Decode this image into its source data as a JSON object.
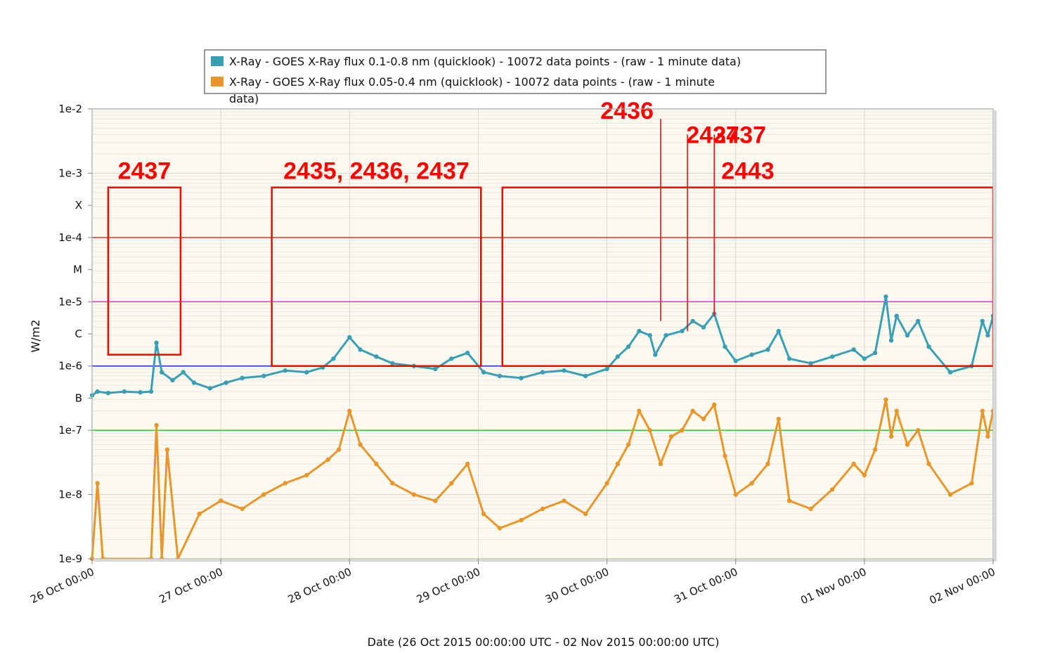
{
  "chart_data": {
    "type": "line",
    "xlabel": "Date (26 Oct 2015 00:00:00 UTC - 02 Nov 2015 00:00:00 UTC)",
    "ylabel": "W/m2",
    "y_scale": "log",
    "ylim": [
      1e-09,
      0.01
    ],
    "xlim": [
      "2015-10-26 00:00",
      "2015-11-02 00:00"
    ],
    "x_tick_labels": [
      "26 Oct 00:00",
      "27 Oct 00:00",
      "28 Oct 00:00",
      "29 Oct 00:00",
      "30 Oct 00:00",
      "31 Oct 00:00",
      "01 Nov 00:00",
      "02 Nov 00:00"
    ],
    "y_tick_labels": [
      {
        "label": "1e-2",
        "value": 0.01
      },
      {
        "label": "1e-3",
        "value": 0.001
      },
      {
        "label": "X",
        "value": 0.000316
      },
      {
        "label": "1e-4",
        "value": 0.0001
      },
      {
        "label": "M",
        "value": 3.16e-05
      },
      {
        "label": "1e-5",
        "value": 1e-05
      },
      {
        "label": "C",
        "value": 3.16e-06
      },
      {
        "label": "1e-6",
        "value": 1e-06
      },
      {
        "label": "B",
        "value": 3.16e-07
      },
      {
        "label": "1e-7",
        "value": 1e-07
      },
      {
        "label": "1e-8",
        "value": 1e-08
      },
      {
        "label": "1e-9",
        "value": 1e-09
      }
    ],
    "grid": true,
    "legend_position": "top-center",
    "threshold_lines": [
      {
        "value": 0.0001,
        "color": "#ff0000"
      },
      {
        "value": 1e-05,
        "color": "#ff00ff"
      },
      {
        "value": 1e-06,
        "color": "#0000ff"
      },
      {
        "value": 1e-07,
        "color": "#00cc00"
      }
    ],
    "series": [
      {
        "name": "X-Ray - GOES X-Ray flux 0.1-0.8 nm (quicklook) - 10072 data points -  (raw - 1 minute data)",
        "color": "#3a9fb5",
        "points": [
          [
            "2015-10-26 00:00",
            3.5e-07
          ],
          [
            "2015-10-26 01:00",
            4e-07
          ],
          [
            "2015-10-26 03:00",
            3.8e-07
          ],
          [
            "2015-10-26 06:00",
            4e-07
          ],
          [
            "2015-10-26 09:00",
            3.9e-07
          ],
          [
            "2015-10-26 11:00",
            4e-07
          ],
          [
            "2015-10-26 12:00",
            2.3e-06
          ],
          [
            "2015-10-26 13:00",
            8e-07
          ],
          [
            "2015-10-26 15:00",
            6e-07
          ],
          [
            "2015-10-26 17:00",
            8e-07
          ],
          [
            "2015-10-26 19:00",
            5.5e-07
          ],
          [
            "2015-10-26 22:00",
            4.5e-07
          ],
          [
            "2015-10-27 01:00",
            5.5e-07
          ],
          [
            "2015-10-27 04:00",
            6.5e-07
          ],
          [
            "2015-10-27 08:00",
            7e-07
          ],
          [
            "2015-10-27 12:00",
            8.5e-07
          ],
          [
            "2015-10-27 16:00",
            8e-07
          ],
          [
            "2015-10-27 19:00",
            9.5e-07
          ],
          [
            "2015-10-27 21:00",
            1.3e-06
          ],
          [
            "2015-10-28 00:00",
            2.8e-06
          ],
          [
            "2015-10-28 02:00",
            1.8e-06
          ],
          [
            "2015-10-28 05:00",
            1.4e-06
          ],
          [
            "2015-10-28 08:00",
            1.1e-06
          ],
          [
            "2015-10-28 12:00",
            1e-06
          ],
          [
            "2015-10-28 16:00",
            9e-07
          ],
          [
            "2015-10-28 19:00",
            1.3e-06
          ],
          [
            "2015-10-28 22:00",
            1.6e-06
          ],
          [
            "2015-10-29 01:00",
            8e-07
          ],
          [
            "2015-10-29 04:00",
            7e-07
          ],
          [
            "2015-10-29 08:00",
            6.5e-07
          ],
          [
            "2015-10-29 12:00",
            8e-07
          ],
          [
            "2015-10-29 16:00",
            8.5e-07
          ],
          [
            "2015-10-29 20:00",
            7e-07
          ],
          [
            "2015-10-30 00:00",
            9e-07
          ],
          [
            "2015-10-30 02:00",
            1.4e-06
          ],
          [
            "2015-10-30 04:00",
            2e-06
          ],
          [
            "2015-10-30 06:00",
            3.5e-06
          ],
          [
            "2015-10-30 08:00",
            3e-06
          ],
          [
            "2015-10-30 09:00",
            1.5e-06
          ],
          [
            "2015-10-30 11:00",
            3e-06
          ],
          [
            "2015-10-30 14:00",
            3.5e-06
          ],
          [
            "2015-10-30 16:00",
            5e-06
          ],
          [
            "2015-10-30 18:00",
            4e-06
          ],
          [
            "2015-10-30 20:00",
            6.5e-06
          ],
          [
            "2015-10-30 22:00",
            2e-06
          ],
          [
            "2015-10-31 00:00",
            1.2e-06
          ],
          [
            "2015-10-31 03:00",
            1.5e-06
          ],
          [
            "2015-10-31 06:00",
            1.8e-06
          ],
          [
            "2015-10-31 08:00",
            3.5e-06
          ],
          [
            "2015-10-31 10:00",
            1.3e-06
          ],
          [
            "2015-10-31 14:00",
            1.1e-06
          ],
          [
            "2015-10-31 18:00",
            1.4e-06
          ],
          [
            "2015-10-31 22:00",
            1.8e-06
          ],
          [
            "2015-11-01 00:00",
            1.3e-06
          ],
          [
            "2015-11-01 02:00",
            1.6e-06
          ],
          [
            "2015-11-01 04:00",
            1.2e-05
          ],
          [
            "2015-11-01 05:00",
            2.5e-06
          ],
          [
            "2015-11-01 06:00",
            6e-06
          ],
          [
            "2015-11-01 08:00",
            3e-06
          ],
          [
            "2015-11-01 10:00",
            5e-06
          ],
          [
            "2015-11-01 12:00",
            2e-06
          ],
          [
            "2015-11-01 16:00",
            8e-07
          ],
          [
            "2015-11-01 20:00",
            1e-06
          ],
          [
            "2015-11-01 22:00",
            5e-06
          ],
          [
            "2015-11-01 23:00",
            3e-06
          ],
          [
            "2015-11-02 00:00",
            6e-06
          ]
        ]
      },
      {
        "name": "X-Ray - GOES X-Ray flux 0.05-0.4 nm (quicklook) - 10072 data points -  (raw - 1 minute data)",
        "color": "#e8962a",
        "points": [
          [
            "2015-10-26 00:00",
            1e-09
          ],
          [
            "2015-10-26 01:00",
            1.5e-08
          ],
          [
            "2015-10-26 02:00",
            1e-09
          ],
          [
            "2015-10-26 11:00",
            1e-09
          ],
          [
            "2015-10-26 12:00",
            1.2e-07
          ],
          [
            "2015-10-26 13:00",
            1e-09
          ],
          [
            "2015-10-26 14:00",
            5e-08
          ],
          [
            "2015-10-26 16:00",
            1e-09
          ],
          [
            "2015-10-26 20:00",
            5e-09
          ],
          [
            "2015-10-27 00:00",
            8e-09
          ],
          [
            "2015-10-27 04:00",
            6e-09
          ],
          [
            "2015-10-27 08:00",
            1e-08
          ],
          [
            "2015-10-27 12:00",
            1.5e-08
          ],
          [
            "2015-10-27 16:00",
            2e-08
          ],
          [
            "2015-10-27 20:00",
            3.5e-08
          ],
          [
            "2015-10-27 22:00",
            5e-08
          ],
          [
            "2015-10-28 00:00",
            2e-07
          ],
          [
            "2015-10-28 02:00",
            6e-08
          ],
          [
            "2015-10-28 05:00",
            3e-08
          ],
          [
            "2015-10-28 08:00",
            1.5e-08
          ],
          [
            "2015-10-28 12:00",
            1e-08
          ],
          [
            "2015-10-28 16:00",
            8e-09
          ],
          [
            "2015-10-28 19:00",
            1.5e-08
          ],
          [
            "2015-10-28 22:00",
            3e-08
          ],
          [
            "2015-10-29 01:00",
            5e-09
          ],
          [
            "2015-10-29 04:00",
            3e-09
          ],
          [
            "2015-10-29 08:00",
            4e-09
          ],
          [
            "2015-10-29 12:00",
            6e-09
          ],
          [
            "2015-10-29 16:00",
            8e-09
          ],
          [
            "2015-10-29 20:00",
            5e-09
          ],
          [
            "2015-10-30 00:00",
            1.5e-08
          ],
          [
            "2015-10-30 02:00",
            3e-08
          ],
          [
            "2015-10-30 04:00",
            6e-08
          ],
          [
            "2015-10-30 06:00",
            2e-07
          ],
          [
            "2015-10-30 08:00",
            1e-07
          ],
          [
            "2015-10-30 10:00",
            3e-08
          ],
          [
            "2015-10-30 12:00",
            8e-08
          ],
          [
            "2015-10-30 14:00",
            1e-07
          ],
          [
            "2015-10-30 16:00",
            2e-07
          ],
          [
            "2015-10-30 18:00",
            1.5e-07
          ],
          [
            "2015-10-30 20:00",
            2.5e-07
          ],
          [
            "2015-10-30 22:00",
            4e-08
          ],
          [
            "2015-10-31 00:00",
            1e-08
          ],
          [
            "2015-10-31 03:00",
            1.5e-08
          ],
          [
            "2015-10-31 06:00",
            3e-08
          ],
          [
            "2015-10-31 08:00",
            1.5e-07
          ],
          [
            "2015-10-31 10:00",
            8e-09
          ],
          [
            "2015-10-31 14:00",
            6e-09
          ],
          [
            "2015-10-31 18:00",
            1.2e-08
          ],
          [
            "2015-10-31 22:00",
            3e-08
          ],
          [
            "2015-11-01 00:00",
            2e-08
          ],
          [
            "2015-11-01 02:00",
            5e-08
          ],
          [
            "2015-11-01 04:00",
            3e-07
          ],
          [
            "2015-11-01 05:00",
            8e-08
          ],
          [
            "2015-11-01 06:00",
            2e-07
          ],
          [
            "2015-11-01 08:00",
            6e-08
          ],
          [
            "2015-11-01 10:00",
            1e-07
          ],
          [
            "2015-11-01 12:00",
            3e-08
          ],
          [
            "2015-11-01 16:00",
            1e-08
          ],
          [
            "2015-11-01 20:00",
            1.5e-08
          ],
          [
            "2015-11-01 22:00",
            2e-07
          ],
          [
            "2015-11-01 23:00",
            8e-08
          ],
          [
            "2015-11-02 00:00",
            2e-07
          ]
        ]
      }
    ],
    "annotations": [
      {
        "label": "2437",
        "box_x": [
          "2015-10-26 03:00",
          "2015-10-26 16:30"
        ],
        "box_y": [
          1.5e-06,
          0.0006
        ]
      },
      {
        "label": "2435, 2436, 2437",
        "box_x": [
          "2015-10-27 09:30",
          "2015-10-29 00:30"
        ],
        "box_y": [
          1e-06,
          0.0006
        ]
      },
      {
        "label": "2443",
        "box_x": [
          "2015-10-29 04:30",
          "2015-11-02 00:00"
        ],
        "box_y": [
          1e-06,
          0.0006
        ]
      },
      {
        "label": "2436",
        "line_x": "2015-10-30 10:00",
        "line_y": [
          5e-06,
          0.007
        ]
      },
      {
        "label": "2437",
        "line_x": "2015-10-30 15:00",
        "line_y": [
          3.5e-06,
          0.004
        ]
      },
      {
        "label": "2437",
        "line_x": "2015-10-30 20:00",
        "line_y": [
          6e-06,
          0.004
        ]
      }
    ]
  }
}
